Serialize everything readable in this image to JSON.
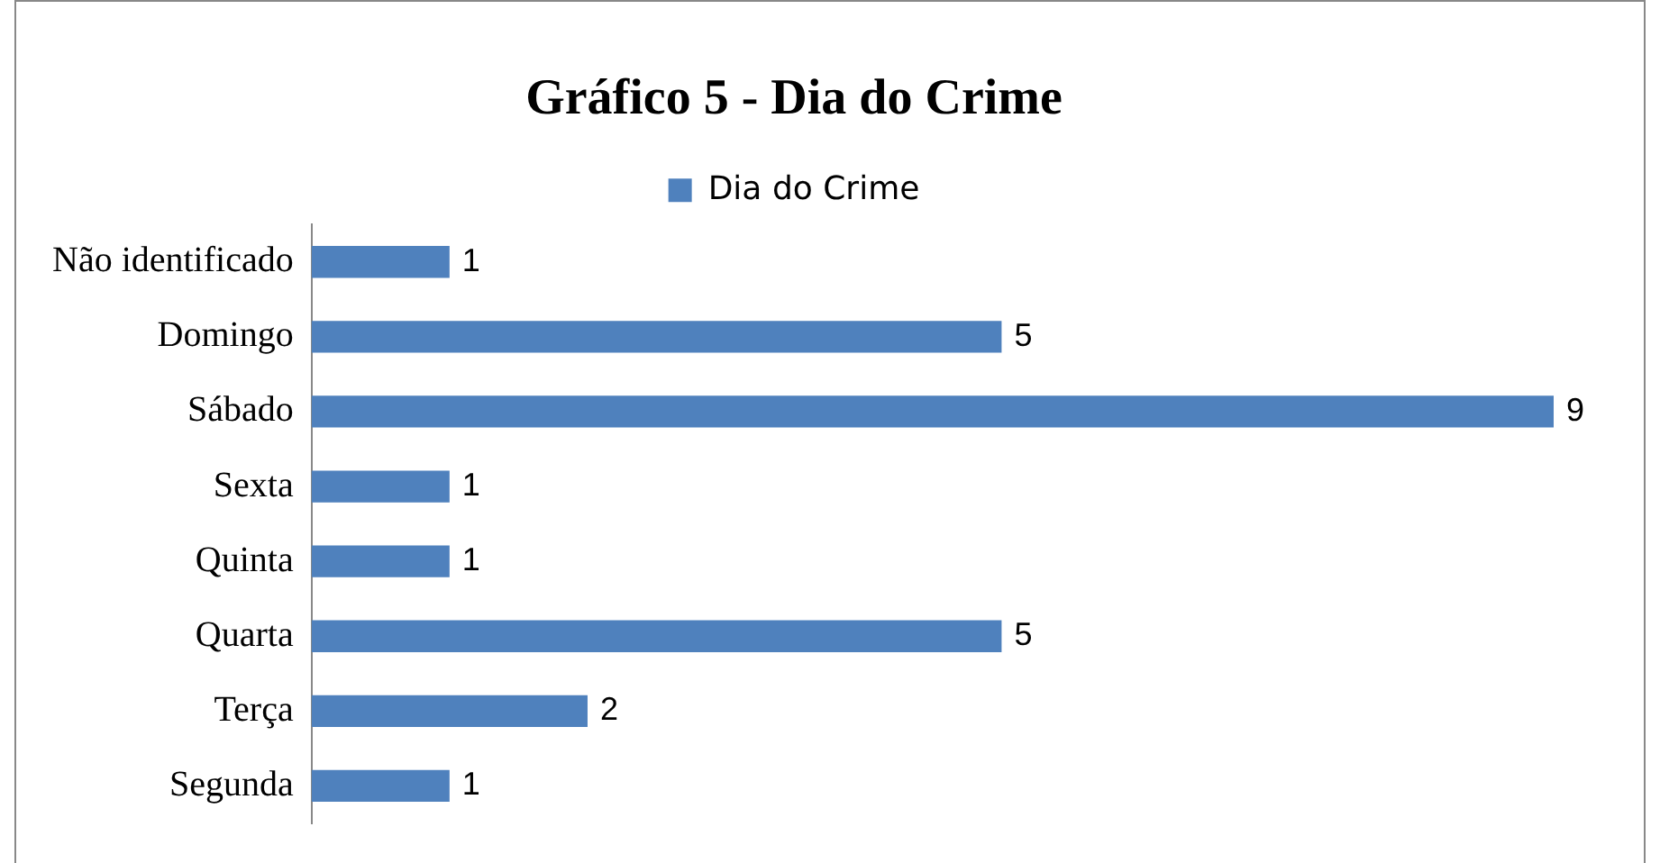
{
  "chart_data": {
    "type": "bar",
    "orientation": "horizontal",
    "title": "Gráfico 5 - Dia do Crime",
    "categories": [
      "Não identificado",
      "Domingo",
      "Sábado",
      "Sexta",
      "Quinta",
      "Quarta",
      "Terça",
      "Segunda"
    ],
    "series": [
      {
        "name": "Dia do Crime",
        "color": "#4f81bd",
        "values": [
          1,
          5,
          9,
          1,
          1,
          5,
          2,
          1
        ]
      }
    ],
    "data_labels": true,
    "legend": "top"
  }
}
